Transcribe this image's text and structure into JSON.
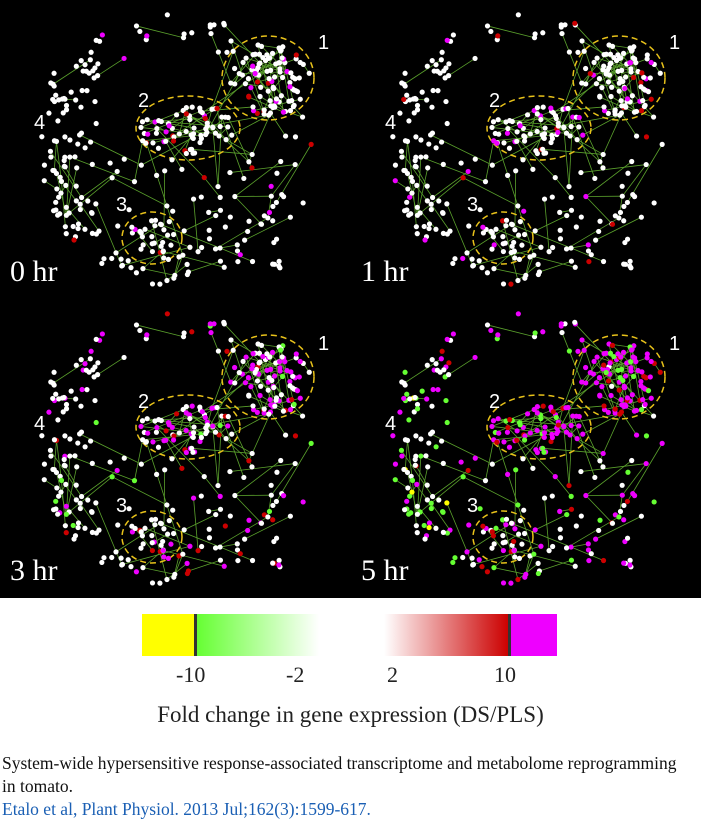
{
  "panels": [
    {
      "time_label": "0 hr",
      "magenta": 0.04,
      "red": 0.05,
      "green": 0.0,
      "yellow": 0.0
    },
    {
      "time_label": "1 hr",
      "magenta": 0.07,
      "red": 0.06,
      "green": 0.0,
      "yellow": 0.0
    },
    {
      "time_label": "3 hr",
      "magenta": 0.25,
      "red": 0.1,
      "green": 0.08,
      "yellow": 0.0
    },
    {
      "time_label": "5 hr",
      "magenta": 0.42,
      "red": 0.12,
      "green": 0.3,
      "yellow": 0.06
    }
  ],
  "cluster_labels": [
    "1",
    "2",
    "3",
    "4"
  ],
  "colors": {
    "yellow": "#ffff00",
    "green": "#66ff33",
    "red": "#cc0000",
    "magenta": "#ee00ff",
    "node": "#ffffff",
    "edge": "#5aa02c",
    "cluster_ring": "#e8c21a"
  },
  "colorbar": {
    "ticks": [
      "-10",
      "-2",
      "2",
      "10"
    ],
    "title": "Fold change in gene expression (DS/PLS)"
  },
  "caption": {
    "text": "System-wide hypersensitive response-associated transcriptome and metabolome reprogramming in tomato.",
    "citation": "Etalo et al, Plant Physiol. 2013 Jul;162(3):1599-617."
  }
}
